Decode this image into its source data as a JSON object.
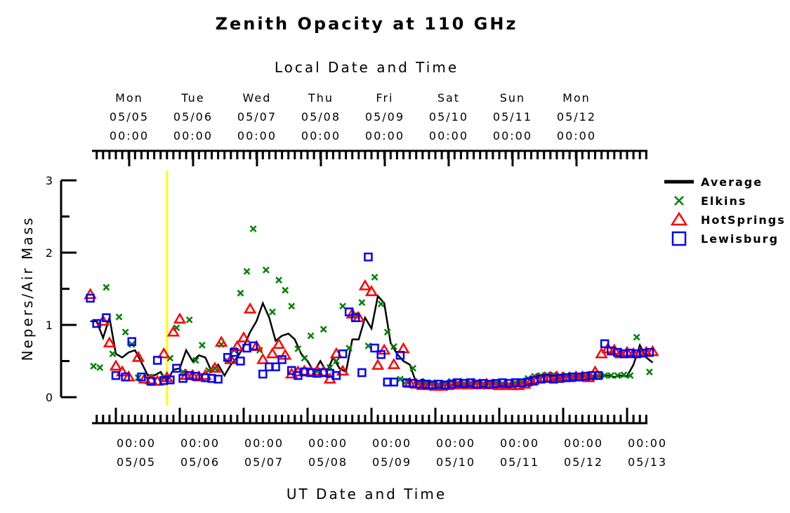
{
  "chart_data": {
    "type": "scatter",
    "title": "Zenith Opacity at 110 GHz",
    "top_axis_title": "Local Date and Time",
    "xlabel": "UT Date and Time",
    "ylabel": "Nepers/Air Mass",
    "xlim": [
      -0.4,
      8.4
    ],
    "ylim": [
      0,
      3
    ],
    "yticks": [
      0,
      1,
      2,
      3
    ],
    "x_units": "days since 05/05 00:00 UT",
    "top_ticks": [
      {
        "day": "Mon",
        "date": "05/05",
        "time": "00:00"
      },
      {
        "day": "Tue",
        "date": "05/06",
        "time": "00:00"
      },
      {
        "day": "Wed",
        "date": "05/07",
        "time": "00:00"
      },
      {
        "day": "Thu",
        "date": "05/08",
        "time": "00:00"
      },
      {
        "day": "Fri",
        "date": "05/09",
        "time": "00:00"
      },
      {
        "day": "Sat",
        "date": "05/10",
        "time": "00:00"
      },
      {
        "day": "Sun",
        "date": "05/11",
        "time": "00:00"
      },
      {
        "day": "Mon",
        "date": "05/12",
        "time": "00:00"
      }
    ],
    "bottom_ticks": [
      {
        "time": "00:00",
        "date": "05/05"
      },
      {
        "time": "00:00",
        "date": "05/06"
      },
      {
        "time": "00:00",
        "date": "05/07"
      },
      {
        "time": "00:00",
        "date": "05/08"
      },
      {
        "time": "00:00",
        "date": "05/09"
      },
      {
        "time": "00:00",
        "date": "05/10"
      },
      {
        "time": "00:00",
        "date": "05/11"
      },
      {
        "time": "00:00",
        "date": "05/12"
      },
      {
        "time": "00:00",
        "date": "05/13"
      }
    ],
    "marker_line_x": 0.8,
    "series": [
      {
        "name": "Average",
        "style": "line",
        "color": "#000000",
        "x": [
          -0.4,
          -0.3,
          -0.2,
          -0.1,
          0.0,
          0.1,
          0.2,
          0.3,
          0.4,
          0.5,
          0.6,
          0.7,
          0.8,
          0.9,
          1.0,
          1.1,
          1.2,
          1.3,
          1.4,
          1.5,
          1.6,
          1.7,
          1.8,
          1.9,
          2.0,
          2.1,
          2.2,
          2.3,
          2.4,
          2.5,
          2.6,
          2.7,
          2.8,
          2.9,
          3.0,
          3.1,
          3.2,
          3.3,
          3.4,
          3.5,
          3.6,
          3.7,
          3.8,
          3.9,
          4.0,
          4.1,
          4.2,
          4.3,
          4.4,
          4.5,
          4.6,
          4.7,
          4.8,
          4.9,
          5.0,
          5.1,
          5.2,
          5.3,
          5.4,
          5.5,
          5.6,
          5.7,
          5.8,
          5.9,
          6.0,
          6.1,
          6.2,
          6.3,
          6.4,
          6.5,
          6.6,
          6.7,
          6.8,
          6.9,
          7.0,
          7.1,
          7.2,
          7.3,
          7.4,
          7.5,
          7.6,
          7.7,
          7.8,
          7.9,
          8.0,
          8.1,
          8.2,
          8.3,
          8.4
        ],
        "values": [
          1.05,
          1.05,
          0.82,
          1.1,
          0.6,
          0.55,
          0.62,
          0.65,
          0.48,
          0.3,
          0.3,
          0.35,
          0.22,
          0.38,
          0.4,
          0.65,
          0.5,
          0.58,
          0.55,
          0.35,
          0.45,
          0.3,
          0.45,
          0.55,
          0.7,
          0.9,
          1.05,
          1.3,
          1.1,
          0.78,
          0.85,
          0.88,
          0.8,
          0.6,
          0.5,
          0.35,
          0.5,
          0.35,
          0.55,
          0.4,
          0.35,
          0.8,
          0.8,
          1.1,
          0.95,
          1.4,
          1.3,
          0.75,
          0.6,
          0.5,
          0.45,
          0.2,
          0.25,
          0.2,
          0.18,
          0.17,
          0.16,
          0.17,
          0.18,
          0.17,
          0.18,
          0.2,
          0.18,
          0.2,
          0.19,
          0.18,
          0.19,
          0.2,
          0.18,
          0.19,
          0.2,
          0.21,
          0.22,
          0.26,
          0.28,
          0.29,
          0.28,
          0.3,
          0.29,
          0.28,
          0.29,
          0.3,
          0.28,
          0.3,
          0.29,
          0.45,
          0.72,
          0.55,
          0.48
        ]
      },
      {
        "name": "Elkins",
        "style": "x",
        "color": "#008000",
        "x": [
          -0.35,
          -0.25,
          -0.15,
          -0.05,
          0.05,
          0.15,
          0.25,
          0.35,
          0.55,
          0.75,
          0.85,
          0.95,
          1.05,
          1.15,
          1.25,
          1.35,
          1.45,
          1.55,
          1.65,
          1.75,
          1.85,
          1.95,
          2.05,
          2.15,
          2.25,
          2.35,
          2.45,
          2.55,
          2.65,
          2.75,
          2.85,
          2.95,
          3.05,
          3.15,
          3.25,
          3.35,
          3.45,
          3.55,
          3.65,
          3.75,
          3.85,
          3.95,
          4.05,
          4.15,
          4.25,
          4.35,
          4.45,
          4.55,
          4.65,
          4.75,
          4.85,
          4.95,
          5.05,
          5.15,
          5.25,
          5.35,
          5.45,
          5.55,
          5.65,
          5.75,
          5.85,
          5.95,
          6.05,
          6.15,
          6.25,
          6.35,
          6.45,
          6.55,
          6.65,
          6.75,
          6.85,
          6.95,
          7.05,
          7.15,
          7.25,
          7.35,
          7.45,
          7.55,
          7.65,
          7.75,
          7.85,
          7.95,
          8.05,
          8.15,
          8.35
        ],
        "values": [
          0.43,
          0.41,
          1.52,
          0.6,
          1.11,
          0.9,
          0.73,
          0.27,
          0.28,
          0.28,
          0.54,
          0.96,
          0.35,
          1.07,
          0.51,
          0.72,
          0.37,
          0.4,
          0.73,
          0.5,
          0.65,
          1.44,
          1.74,
          2.33,
          0.65,
          1.76,
          1.18,
          1.62,
          1.48,
          1.26,
          0.67,
          0.54,
          0.85,
          0.36,
          0.94,
          0.41,
          0.5,
          1.26,
          0.68,
          1.14,
          1.31,
          0.71,
          1.66,
          1.29,
          0.9,
          0.7,
          0.25,
          0.22,
          0.4,
          0.2,
          0.19,
          0.2,
          0.18,
          0.19,
          0.22,
          0.2,
          0.19,
          0.2,
          0.21,
          0.19,
          0.2,
          0.2,
          0.19,
          0.18,
          0.2,
          0.21,
          0.26,
          0.29,
          0.3,
          0.31,
          0.31,
          0.3,
          0.3,
          0.29,
          0.3,
          0.3,
          0.28,
          0.29,
          0.3,
          0.3,
          0.3,
          0.31,
          0.3,
          0.83,
          0.35
        ]
      },
      {
        "name": "HotSprings",
        "style": "triangle",
        "color": "#ff0000",
        "x": [
          -0.4,
          -0.2,
          -0.1,
          0.0,
          0.1,
          0.2,
          0.35,
          0.45,
          0.55,
          0.65,
          0.75,
          0.8,
          0.9,
          1.0,
          1.1,
          1.2,
          1.3,
          1.4,
          1.55,
          1.65,
          1.8,
          1.9,
          2.0,
          2.1,
          2.2,
          2.3,
          2.45,
          2.55,
          2.65,
          2.75,
          2.85,
          2.95,
          3.05,
          3.15,
          3.25,
          3.35,
          3.45,
          3.55,
          3.7,
          3.8,
          3.9,
          4.0,
          4.1,
          4.2,
          4.35,
          4.5,
          4.6,
          4.7,
          4.8,
          4.9,
          5.0,
          5.1,
          5.2,
          5.3,
          5.4,
          5.5,
          5.6,
          5.7,
          5.8,
          5.9,
          6.0,
          6.1,
          6.2,
          6.3,
          6.4,
          6.5,
          6.6,
          6.7,
          6.8,
          6.9,
          7.0,
          7.1,
          7.2,
          7.3,
          7.4,
          7.5,
          7.6,
          7.7,
          7.8,
          7.9,
          8.0,
          8.1,
          8.2,
          8.3,
          8.4
        ],
        "values": [
          1.42,
          1.05,
          0.75,
          0.43,
          0.35,
          0.28,
          0.55,
          0.25,
          0.24,
          0.22,
          0.6,
          0.27,
          0.9,
          1.08,
          0.3,
          0.3,
          0.28,
          0.3,
          0.4,
          0.76,
          0.52,
          0.7,
          0.82,
          1.22,
          0.7,
          0.52,
          0.6,
          0.73,
          0.58,
          0.32,
          0.35,
          0.36,
          0.35,
          0.36,
          0.35,
          0.25,
          0.6,
          0.36,
          1.15,
          1.1,
          1.54,
          1.46,
          0.44,
          0.65,
          0.45,
          0.67,
          0.19,
          0.18,
          0.16,
          0.16,
          0.15,
          0.15,
          0.16,
          0.17,
          0.18,
          0.17,
          0.18,
          0.17,
          0.18,
          0.17,
          0.16,
          0.17,
          0.16,
          0.16,
          0.18,
          0.22,
          0.25,
          0.26,
          0.27,
          0.28,
          0.27,
          0.27,
          0.28,
          0.28,
          0.27,
          0.35,
          0.6,
          0.67,
          0.65,
          0.6,
          0.62,
          0.6,
          0.61,
          0.62,
          0.63
        ]
      },
      {
        "name": "Lewisburg",
        "style": "square",
        "color": "#0000ff",
        "x": [
          -0.4,
          -0.3,
          -0.15,
          0.0,
          0.15,
          0.25,
          0.4,
          0.55,
          0.65,
          0.75,
          0.85,
          0.95,
          1.05,
          1.15,
          1.25,
          1.4,
          1.5,
          1.6,
          1.75,
          1.85,
          1.95,
          2.05,
          2.15,
          2.3,
          2.4,
          2.5,
          2.6,
          2.75,
          2.85,
          2.95,
          3.05,
          3.15,
          3.25,
          3.35,
          3.45,
          3.55,
          3.65,
          3.75,
          3.85,
          3.95,
          4.05,
          4.15,
          4.25,
          4.35,
          4.45,
          4.55,
          4.65,
          4.75,
          4.85,
          4.95,
          5.05,
          5.15,
          5.25,
          5.35,
          5.45,
          5.55,
          5.65,
          5.75,
          5.85,
          5.95,
          6.05,
          6.15,
          6.25,
          6.35,
          6.45,
          6.55,
          6.65,
          6.75,
          6.85,
          6.95,
          7.05,
          7.15,
          7.25,
          7.35,
          7.45,
          7.55,
          7.65,
          7.75,
          7.85,
          7.95,
          8.05,
          8.15,
          8.25,
          8.35
        ],
        "values": [
          1.37,
          1.02,
          1.1,
          0.3,
          0.28,
          0.77,
          0.28,
          0.22,
          0.51,
          0.23,
          0.24,
          0.4,
          0.26,
          0.3,
          0.29,
          0.27,
          0.26,
          0.25,
          0.55,
          0.62,
          0.5,
          0.68,
          0.71,
          0.32,
          0.42,
          0.42,
          0.52,
          0.37,
          0.3,
          0.35,
          0.34,
          0.33,
          0.34,
          0.33,
          0.3,
          0.6,
          1.18,
          1.1,
          0.34,
          1.94,
          0.68,
          0.59,
          0.21,
          0.21,
          0.58,
          0.2,
          0.19,
          0.18,
          0.18,
          0.17,
          0.18,
          0.17,
          0.18,
          0.2,
          0.19,
          0.2,
          0.18,
          0.19,
          0.18,
          0.19,
          0.2,
          0.19,
          0.2,
          0.2,
          0.21,
          0.23,
          0.25,
          0.26,
          0.25,
          0.26,
          0.27,
          0.28,
          0.28,
          0.29,
          0.3,
          0.3,
          0.74,
          0.64,
          0.62,
          0.6,
          0.61,
          0.6,
          0.61,
          0.62
        ]
      }
    ],
    "legend": {
      "placement": "right",
      "entries": [
        "Average",
        "Elkins",
        "HotSprings",
        "Lewisburg"
      ]
    }
  }
}
